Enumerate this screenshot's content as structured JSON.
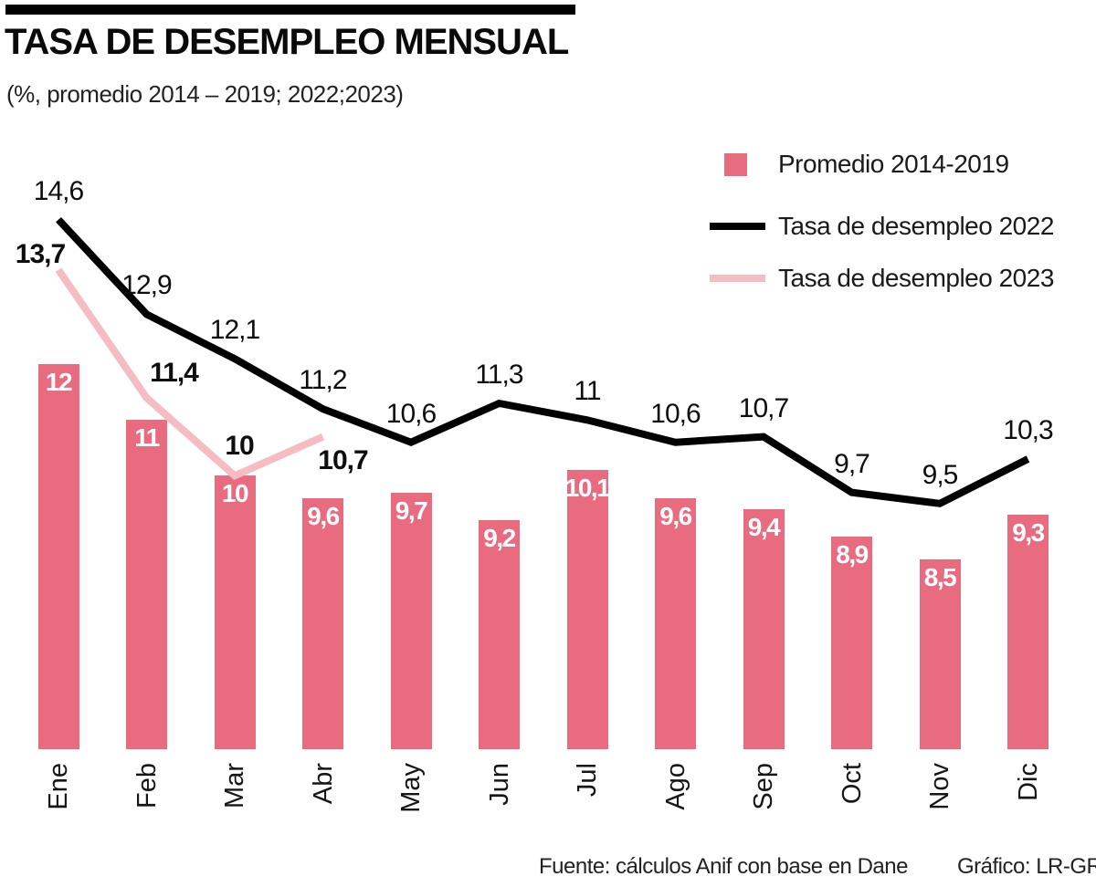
{
  "header": {
    "title": "TASA DE DESEMPLEO MENSUAL",
    "subtitle": "(%, promedio 2014 – 2019; 2022;2023)"
  },
  "colors": {
    "bar_pink": "#E96B80",
    "line_black": "#000000",
    "line_light_pink": "#F5BDC3"
  },
  "chart_data": {
    "type": "bar+line",
    "categories": [
      "Ene",
      "Feb",
      "Mar",
      "Abr",
      "May",
      "Jun",
      "Jul",
      "Ago",
      "Sep",
      "Oct",
      "Nov",
      "Dic"
    ],
    "series": [
      {
        "name": "Promedio 2014-2019",
        "type": "bar",
        "color": "#E96B80",
        "values": [
          12,
          11,
          10,
          9.6,
          9.7,
          9.2,
          10.1,
          9.6,
          9.4,
          8.9,
          8.5,
          9.3
        ],
        "labels": [
          "12",
          "11",
          "10",
          "9,6",
          "9,7",
          "9,2",
          "10,1",
          "9,6",
          "9,4",
          "8,9",
          "8,5",
          "9,3"
        ]
      },
      {
        "name": "Tasa de desempleo 2022",
        "type": "line",
        "color": "#000000",
        "values": [
          14.6,
          12.9,
          12.1,
          11.2,
          10.6,
          11.3,
          11,
          10.6,
          10.7,
          9.7,
          9.5,
          10.3
        ],
        "labels": [
          "14,6",
          "12,9",
          "12,1",
          "11,2",
          "10,6",
          "11,3",
          "11",
          "10,6",
          "10,7",
          "9,7",
          "9,5",
          "10,3"
        ]
      },
      {
        "name": "Tasa de desempleo 2023",
        "type": "line",
        "color": "#F5BDC3",
        "values": [
          13.7,
          11.4,
          10,
          10.7
        ],
        "labels": [
          "13,7",
          "11,4",
          "10",
          "10,7"
        ]
      }
    ],
    "value_format": "comma-decimal",
    "grid": false,
    "axis_lines": false,
    "legend_position": "top-right",
    "xlabel": "",
    "ylabel": ""
  },
  "footer": {
    "source": "Fuente: cálculos Anif con base en Dane",
    "credit": "Gráfico: LR-GR"
  }
}
